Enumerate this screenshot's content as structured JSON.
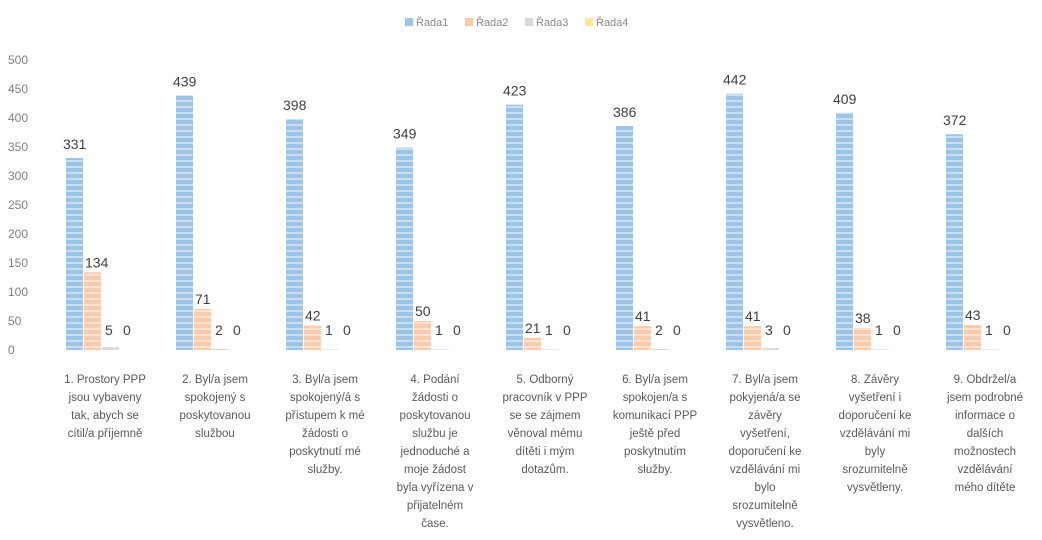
{
  "chart_data": {
    "type": "bar",
    "ylim": [
      0,
      500
    ],
    "yticks": [
      0,
      50,
      100,
      150,
      200,
      250,
      300,
      350,
      400,
      450,
      500
    ],
    "legend_position": "top-center",
    "grid": false,
    "categories": [
      [
        "1. Prostory PPP",
        "jsou vybaveny",
        "tak, abych se",
        "cítil/a příjemně"
      ],
      [
        "2. Byl/a jsem",
        "spokojený s",
        "poskytovanou",
        "službou"
      ],
      [
        "3. Byl/a jsem",
        "spokojený/á s",
        "přístupem k mé",
        "žádosti o",
        "poskytnutí mé",
        "služby."
      ],
      [
        "4. Podání",
        "žádosti o",
        "poskytovanou",
        "službu je",
        "jednoduché a",
        "moje žádost",
        "byla vyřízena v",
        "přijatelném",
        "čase."
      ],
      [
        "5. Odborný",
        "pracovník v PPP",
        "se se zájmem",
        "věnoval mému",
        "dítěti i mým",
        "dotazům."
      ],
      [
        "6. Byl/a jsem",
        "spokojen/a s",
        "komunikací PPP",
        "ještě před",
        "poskytnutím",
        "služby."
      ],
      [
        "7. Byl/a jsem",
        "pokyjená/a se",
        "závěry",
        "vyšetření,",
        "doporučení ke",
        "vzdělávání mi",
        "bylo",
        "srozumitelně",
        "vysvětleno."
      ],
      [
        "8. Závěry",
        "vyšetření i",
        "doporučení ke",
        "vzdělávání mi",
        "byly",
        "srozumitelně",
        "vysvětleny."
      ],
      [
        "9. Obdržel/a",
        "jsem podrobné",
        "informace o",
        "dalších",
        "možnostech",
        "vzdělávání",
        "mého dítěte"
      ]
    ],
    "series": [
      {
        "name": "Řada1",
        "color": "#9dc3e6",
        "values": [
          331,
          439,
          398,
          349,
          423,
          386,
          442,
          409,
          372
        ]
      },
      {
        "name": "Řada2",
        "color": "#f8cbad",
        "values": [
          134,
          71,
          42,
          50,
          21,
          41,
          41,
          38,
          43
        ]
      },
      {
        "name": "Řada3",
        "color": "#d9d9d9",
        "values": [
          5,
          2,
          1,
          1,
          1,
          2,
          3,
          1,
          1
        ]
      },
      {
        "name": "Řada4",
        "color": "#ffe699",
        "values": [
          0,
          0,
          0,
          0,
          0,
          0,
          0,
          0,
          0
        ]
      }
    ]
  }
}
